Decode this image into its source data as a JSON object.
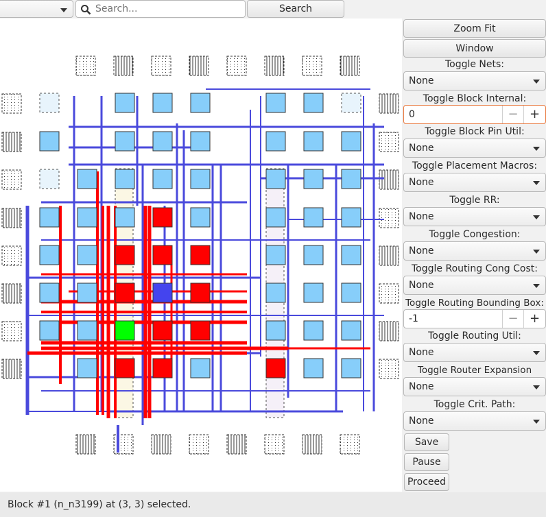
{
  "toolbar": {
    "search_placeholder": "Search...",
    "search_button": "Search"
  },
  "sidebar": {
    "zoom_fit": "Zoom Fit",
    "window": "Window",
    "toggle_nets": {
      "label": "Toggle Nets:",
      "value": "None"
    },
    "toggle_block_internal": {
      "label": "Toggle Block Internal:",
      "value": "0"
    },
    "toggle_block_pin_util": {
      "label": "Toggle Block Pin Util:",
      "value": "None"
    },
    "toggle_placement_macros": {
      "label": "Toggle Placement Macros:",
      "value": "None"
    },
    "toggle_rr": {
      "label": "Toggle RR:",
      "value": "None"
    },
    "toggle_congestion": {
      "label": "Toggle Congestion:",
      "value": "None"
    },
    "toggle_routing_cong_cost": {
      "label": "Toggle Routing Cong Cost:",
      "value": "None"
    },
    "toggle_routing_bounding_box": {
      "label": "Toggle Routing Bounding Box:",
      "value": "-1"
    },
    "toggle_routing_util": {
      "label": "Toggle Routing Util:",
      "value": "None"
    },
    "toggle_router_expansion_costs": {
      "label": "Toggle Router Expansion Costs:",
      "value": "None"
    },
    "toggle_crit_path": {
      "label": "Toggle Crit. Path:",
      "value": "None"
    },
    "save": "Save",
    "pause": "Pause",
    "proceed": "Proceed"
  },
  "status": {
    "message": "Block #1 (n_n3199) at (3, 3) selected."
  },
  "colors": {
    "clb": "#87cefa",
    "highlight": "#ff0000",
    "selected": "#00ff00",
    "net": "#4a4adc",
    "net_highlight": "#ff0000",
    "selected_block": "#4444ee"
  },
  "grid": {
    "cols": [
      56,
      111,
      166,
      221,
      276,
      331,
      386,
      441,
      496,
      551
    ],
    "rows": [
      82,
      137,
      193,
      248,
      304,
      359,
      414,
      469,
      524,
      579
    ],
    "io_top": [
      1,
      2,
      3,
      4,
      5,
      6,
      7,
      8
    ],
    "io_bottom": [
      1,
      2,
      3,
      4,
      5,
      6,
      7,
      8
    ],
    "io_left": [
      1,
      2,
      3,
      4,
      5,
      6,
      7,
      8
    ],
    "io_right": [
      1,
      2,
      3,
      4,
      5,
      6,
      7,
      8
    ],
    "clb_cells": [
      [
        1,
        2
      ],
      [
        1,
        4
      ],
      [
        1,
        5
      ],
      [
        1,
        6
      ],
      [
        1,
        7
      ],
      [
        2,
        3
      ],
      [
        2,
        4
      ],
      [
        2,
        5
      ],
      [
        2,
        6
      ],
      [
        2,
        7
      ],
      [
        2,
        8
      ],
      [
        3,
        1
      ],
      [
        3,
        2
      ],
      [
        3,
        3
      ],
      [
        3,
        4
      ],
      [
        3,
        5
      ],
      [
        3,
        6
      ],
      [
        3,
        7
      ],
      [
        3,
        8
      ],
      [
        4,
        1
      ],
      [
        4,
        2
      ],
      [
        4,
        3
      ],
      [
        4,
        4
      ],
      [
        4,
        5
      ],
      [
        4,
        6
      ],
      [
        4,
        7
      ],
      [
        4,
        8
      ],
      [
        5,
        1
      ],
      [
        5,
        2
      ],
      [
        5,
        3
      ],
      [
        5,
        4
      ],
      [
        5,
        5
      ],
      [
        5,
        6
      ],
      [
        5,
        7
      ],
      [
        5,
        8
      ],
      [
        7,
        1
      ],
      [
        7,
        2
      ],
      [
        7,
        3
      ],
      [
        7,
        4
      ],
      [
        7,
        5
      ],
      [
        7,
        6
      ],
      [
        7,
        7
      ],
      [
        7,
        8
      ],
      [
        8,
        1
      ],
      [
        8,
        2
      ],
      [
        8,
        3
      ],
      [
        8,
        4
      ],
      [
        8,
        5
      ],
      [
        8,
        6
      ],
      [
        8,
        7
      ],
      [
        8,
        8
      ],
      [
        9,
        2
      ],
      [
        9,
        3
      ],
      [
        9,
        4
      ],
      [
        9,
        5
      ],
      [
        9,
        6
      ],
      [
        9,
        7
      ],
      [
        9,
        8
      ]
    ],
    "empty_cells": [
      [
        1,
        1
      ],
      [
        1,
        3
      ],
      [
        9,
        1
      ]
    ],
    "red_cells": [
      [
        4,
        4
      ],
      [
        3,
        5
      ],
      [
        4,
        5
      ],
      [
        5,
        5
      ],
      [
        3,
        6
      ],
      [
        5,
        6
      ],
      [
        4,
        7
      ],
      [
        5,
        7
      ],
      [
        3,
        8
      ],
      [
        4,
        8
      ],
      [
        7,
        8
      ]
    ],
    "green_cells": [
      [
        3,
        7
      ]
    ],
    "blue_cells": [
      [
        4,
        6
      ]
    ],
    "memory_cols": [
      2,
      6
    ]
  }
}
